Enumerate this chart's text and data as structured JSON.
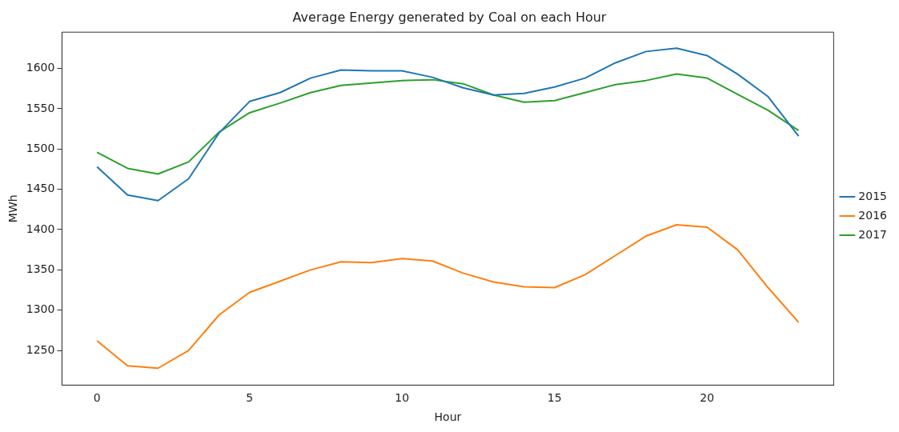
{
  "chart_data": {
    "type": "line",
    "title": "Average Energy generated by Coal on each Hour",
    "xlabel": "Hour",
    "ylabel": "MWh",
    "x": [
      0,
      1,
      2,
      3,
      4,
      5,
      6,
      7,
      8,
      9,
      10,
      11,
      12,
      13,
      14,
      15,
      16,
      17,
      18,
      19,
      20,
      21,
      22,
      23
    ],
    "series": [
      {
        "name": "2015",
        "color": "#1f77b4",
        "values": [
          1478,
          1443,
          1436,
          1463,
          1520,
          1559,
          1570,
          1588,
          1598,
          1597,
          1597,
          1589,
          1576,
          1567,
          1569,
          1577,
          1588,
          1607,
          1621,
          1625,
          1616,
          1593,
          1565,
          1516
        ]
      },
      {
        "name": "2016",
        "color": "#ff7f0e",
        "values": [
          1262,
          1231,
          1228,
          1250,
          1294,
          1322,
          1336,
          1350,
          1360,
          1359,
          1364,
          1361,
          1346,
          1335,
          1329,
          1328,
          1344,
          1368,
          1392,
          1406,
          1403,
          1375,
          1328,
          1285
        ]
      },
      {
        "name": "2017",
        "color": "#2ca02c",
        "values": [
          1496,
          1476,
          1469,
          1484,
          1521,
          1545,
          1557,
          1570,
          1579,
          1582,
          1585,
          1586,
          1581,
          1567,
          1558,
          1560,
          1570,
          1580,
          1585,
          1593,
          1588,
          1568,
          1548,
          1523
        ]
      }
    ],
    "xlim": [
      -1.15,
      24.15
    ],
    "xticks": [
      0,
      5,
      10,
      15,
      20
    ],
    "ylim": [
      1207,
      1645
    ],
    "yticks": [
      1250,
      1300,
      1350,
      1400,
      1450,
      1500,
      1550,
      1600
    ],
    "grid": false,
    "legend": "right",
    "marker": "none",
    "line_style": "solid"
  }
}
